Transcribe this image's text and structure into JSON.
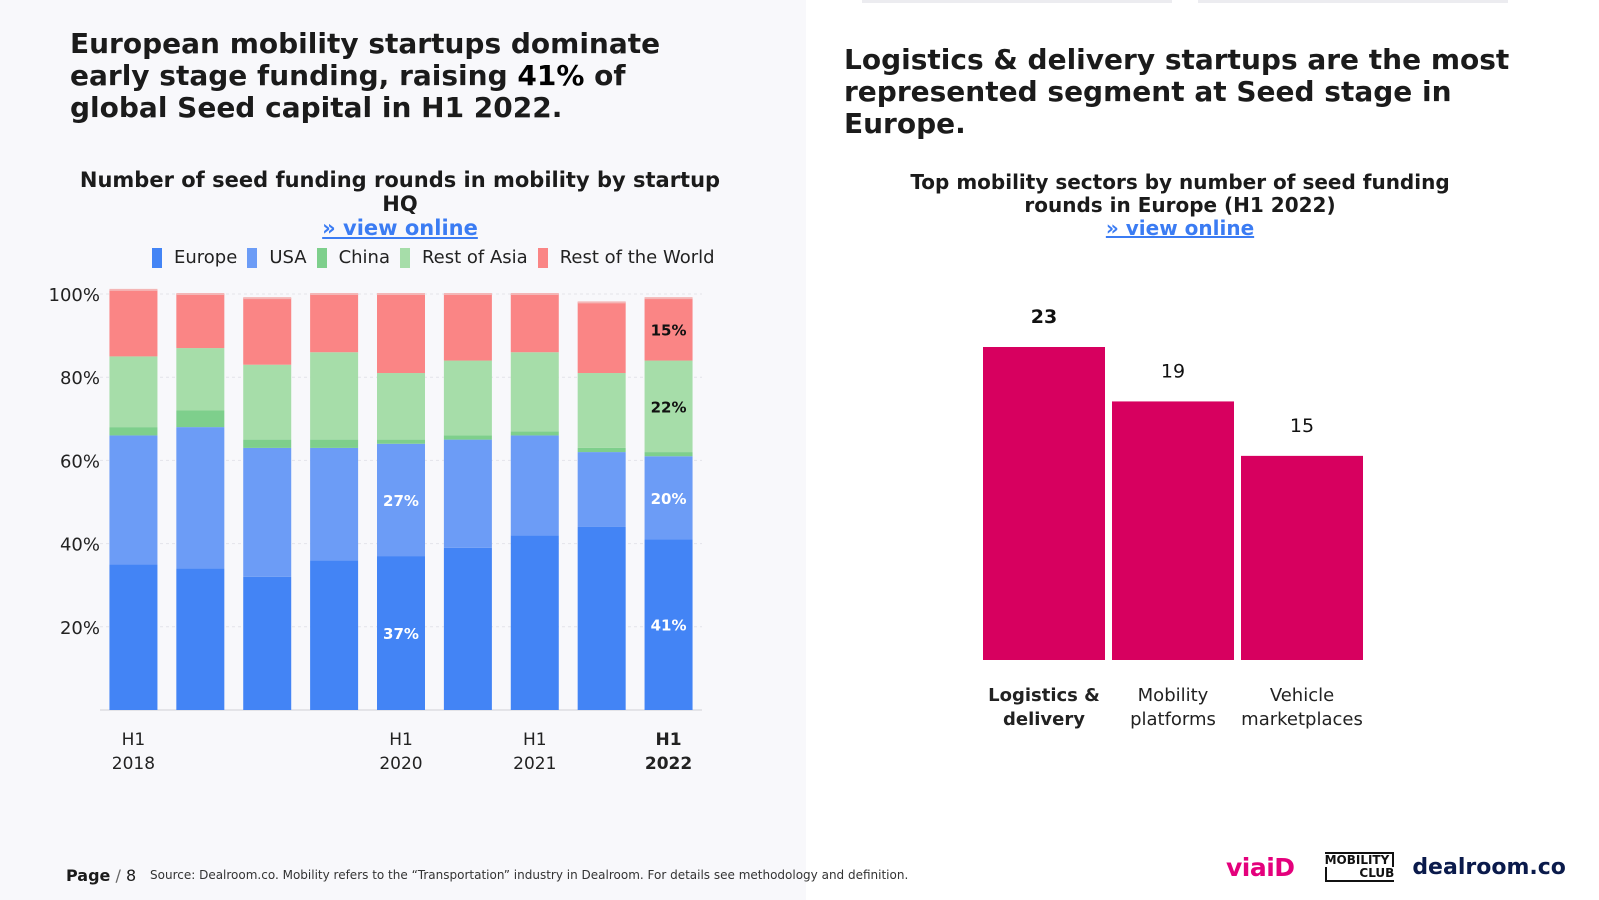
{
  "left": {
    "headline_part1": "European mobility startups dominate early stage funding, raising ",
    "headline_highlight": "41%",
    "headline_part2": " of global Seed capital in H1 2022.",
    "chart_title": "Number of seed funding rounds in mobility by startup HQ",
    "view_online": "» view online"
  },
  "right": {
    "headline": "Logistics & delivery startups are the most represented segment at Seed stage in Europe.",
    "chart_title": "Top mobility sectors by number of seed funding rounds in Europe (H1 2022)",
    "view_online": "» view online"
  },
  "footer": {
    "page_label": "Page",
    "page_sep": " / ",
    "page_number": "8",
    "source": "Source: Dealroom.co. Mobility refers to the “Transportation” industry in Dealroom. For details see methodology and definition.",
    "logo_viaid": "viaiD",
    "logo_mobility_line1": "MOBILITY",
    "logo_mobility_line2": "CLUB",
    "logo_dealroom": "dealroom.co"
  },
  "colors": {
    "europe": "#4384f5",
    "usa": "#6c9cf6",
    "china": "#7ecf8c",
    "rest_of_asia": "#a6dda9",
    "rest_of_world": "#fa8585",
    "bar_pink": "#d7005f",
    "link": "#3b7cf3"
  },
  "chart_data": [
    {
      "type": "bar",
      "stacked": true,
      "title": "Number of seed funding rounds in mobility by startup HQ",
      "y_ticks": [
        "20%",
        "40%",
        "60%",
        "80%",
        "100%"
      ],
      "ylim": [
        0,
        100
      ],
      "x_tick_labels": [
        {
          "index": 0,
          "line1": "H1",
          "line2": "2018",
          "bold": false
        },
        {
          "index": 4,
          "line1": "H1",
          "line2": "2020",
          "bold": false
        },
        {
          "index": 6,
          "line1": "H1",
          "line2": "2021",
          "bold": false
        },
        {
          "index": 8,
          "line1": "H1",
          "line2": "2022",
          "bold": true
        }
      ],
      "series": [
        {
          "name": "Europe",
          "color_key": "europe",
          "values": [
            35,
            34,
            32,
            36,
            37,
            39,
            42,
            44,
            41
          ]
        },
        {
          "name": "USA",
          "color_key": "usa",
          "values": [
            31,
            34,
            31,
            27,
            27,
            26,
            24,
            18,
            20
          ]
        },
        {
          "name": "China",
          "color_key": "china",
          "values": [
            2,
            4,
            2,
            2,
            1,
            1,
            1,
            1,
            1
          ]
        },
        {
          "name": "Rest of Asia",
          "color_key": "rest_of_asia",
          "values": [
            17,
            15,
            18,
            21,
            16,
            18,
            19,
            18,
            22
          ]
        },
        {
          "name": "Rest of the World",
          "color_key": "rest_of_world",
          "values": [
            16,
            13,
            16,
            14,
            19,
            16,
            14,
            17,
            15
          ]
        }
      ],
      "annotations": [
        {
          "bar": 4,
          "series": "Europe",
          "text": "37%"
        },
        {
          "bar": 4,
          "series": "USA",
          "text": "27%"
        },
        {
          "bar": 8,
          "series": "Europe",
          "text": "41%"
        },
        {
          "bar": 8,
          "series": "USA",
          "text": "20%"
        },
        {
          "bar": 8,
          "series": "Rest of Asia",
          "text": "22%"
        },
        {
          "bar": 8,
          "series": "Rest of the World",
          "text": "15%"
        }
      ]
    },
    {
      "type": "bar",
      "title": "Top mobility sectors by number of seed funding rounds in Europe (H1 2022)",
      "categories": [
        {
          "line1": "Logistics &",
          "line2": "delivery",
          "bold": true
        },
        {
          "line1": "Mobility",
          "line2": "platforms",
          "bold": false
        },
        {
          "line1": "Vehicle",
          "line2": "marketplaces",
          "bold": false
        }
      ],
      "values": [
        23,
        19,
        15
      ],
      "ylim": [
        0,
        23
      ]
    }
  ]
}
